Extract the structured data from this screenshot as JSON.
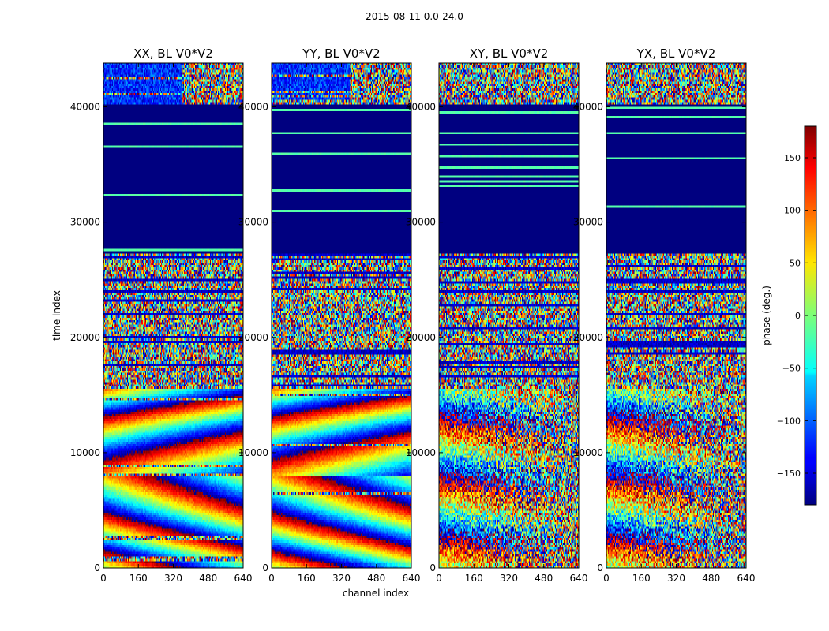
{
  "chart_data": {
    "type": "heatmap",
    "title": "2015-08-11 0.0-24.0",
    "xlabel": "channel index",
    "ylabel": "time index",
    "xlim": [
      0,
      640
    ],
    "ylim": [
      0,
      43800
    ],
    "x_ticks": [
      0,
      160,
      320,
      480,
      640
    ],
    "y_ticks": [
      0,
      10000,
      20000,
      30000,
      40000
    ],
    "panels": [
      {
        "name": "XX, BL V0*V2"
      },
      {
        "name": "YY, BL V0*V2"
      },
      {
        "name": "XY, BL V0*V2"
      },
      {
        "name": "YX, BL V0*V2"
      }
    ],
    "colorbar": {
      "label": "phase (deg.)",
      "range": [
        -180,
        180
      ],
      "ticks": [
        -150,
        -100,
        -50,
        0,
        50,
        100,
        150
      ],
      "tick_labels": [
        "−150",
        "−100",
        "−50",
        "0",
        "50",
        "100",
        "150"
      ],
      "colormap": "jet"
    },
    "structure": {
      "masked_band_time": [
        27300,
        40200
      ],
      "masked_value_deg": -180,
      "coherent_region_time": [
        0,
        15500
      ],
      "noise_region_time": [
        15500,
        27300
      ],
      "top_noise_time": [
        40200,
        43800
      ]
    }
  }
}
